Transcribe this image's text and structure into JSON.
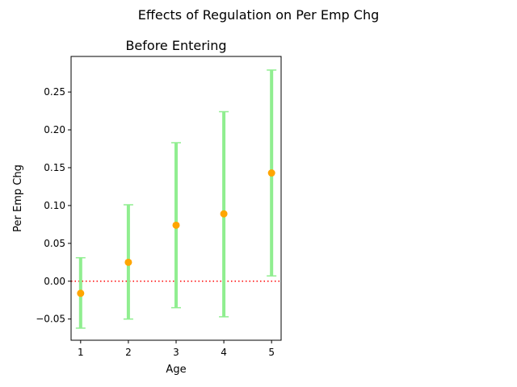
{
  "suptitle": "Effects of Regulation on Per Emp Chg",
  "chart_data": {
    "type": "scatter",
    "title": "Before Entering",
    "xlabel": "Age",
    "ylabel": "Per Emp Chg",
    "xlim": [
      0.8,
      5.2
    ],
    "ylim": [
      -0.078,
      0.297
    ],
    "x_ticks": [
      1,
      2,
      3,
      4,
      5
    ],
    "x_tick_labels": [
      "1",
      "2",
      "3",
      "4",
      "5"
    ],
    "y_ticks": [
      -0.05,
      0.0,
      0.05,
      0.1,
      0.15,
      0.2,
      0.25
    ],
    "y_tick_labels": [
      "−0.05",
      "0.00",
      "0.05",
      "0.10",
      "0.15",
      "0.20",
      "0.25"
    ],
    "grid": false,
    "reference_line": {
      "y": 0,
      "style": "dotted",
      "color": "#ff0000"
    },
    "series": [
      {
        "x": [
          1,
          2,
          3,
          4,
          5
        ],
        "y": [
          -0.016,
          0.025,
          0.074,
          0.089,
          0.143
        ],
        "lower": [
          -0.062,
          -0.05,
          -0.035,
          -0.047,
          0.007
        ],
        "upper": [
          0.031,
          0.101,
          0.183,
          0.224,
          0.279
        ],
        "marker_color": "#ffa500",
        "errorbar_color": "#90ee90"
      }
    ]
  }
}
